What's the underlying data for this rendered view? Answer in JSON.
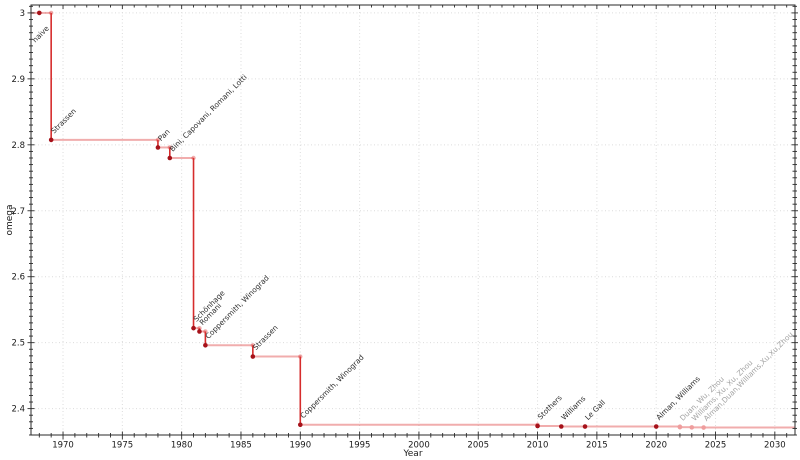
{
  "chart_data": {
    "type": "line",
    "subtype": "step-post",
    "title": "",
    "xlabel": "Year",
    "ylabel": "omega",
    "xlim": [
      1967.3,
      2031.7
    ],
    "ylim": [
      2.36,
      3.012
    ],
    "grid": "dotted-major",
    "legend": "none",
    "x_major_ticks": [
      1970,
      1975,
      1980,
      1985,
      1990,
      1995,
      2000,
      2005,
      2010,
      2015,
      2020,
      2025,
      2030
    ],
    "y_major_ticks": [
      2.4,
      2.5,
      2.6,
      2.7,
      2.8,
      2.9,
      3
    ],
    "y_major_tick_labels": [
      "2.4",
      "2.5",
      "2.6",
      "2.7",
      "2.8",
      "2.9",
      "3"
    ],
    "x_minor_step": 1,
    "y_minor_step": 0.01,
    "colors": {
      "step_line": "#dd3c3c",
      "step_line_opacity": 0.42,
      "drop_line": "#d62c2c",
      "marker": "#a6121a",
      "marker_provisional": "#ef9d9d",
      "grid": "#dcdcdc",
      "axis": "#2a2a2a",
      "tick_label": "#1a1a1a",
      "point_label": "#2e2e2e",
      "point_label_provisional": "#a3a3a3"
    },
    "points": [
      {
        "year": 1968,
        "omega": 3,
        "label": "naive",
        "label_dx": -4,
        "label_dy": 30
      },
      {
        "year": 1969,
        "omega": 2.8074,
        "label": "Strassen"
      },
      {
        "year": 1978,
        "omega": 2.796,
        "label": "Pan"
      },
      {
        "year": 1979,
        "omega": 2.78,
        "label": "Bini, Capovani, Romani, Lotti"
      },
      {
        "year": 1981,
        "omega": 2.522,
        "label": "Schönhage"
      },
      {
        "year": 1981.5,
        "omega": 2.517,
        "label": "Romani"
      },
      {
        "year": 1982,
        "omega": 2.496,
        "label": "Coppersmith, Winograd"
      },
      {
        "year": 1986,
        "omega": 2.479,
        "label": "Strassen"
      },
      {
        "year": 1990,
        "omega": 2.3755,
        "label": "Coppersmith, Winograd"
      },
      {
        "year": 2010,
        "omega": 2.3737,
        "label": "Stothers"
      },
      {
        "year": 2012,
        "omega": 2.3729,
        "label": "Williams"
      },
      {
        "year": 2014,
        "omega": 2.3728639,
        "label": "Le Gall"
      },
      {
        "year": 2020,
        "omega": 2.3728596,
        "label": "Alman, Williams"
      },
      {
        "year": 2022,
        "omega": 2.371866,
        "label": "Duan, Wu, Zhou",
        "provisional": true
      },
      {
        "year": 2023,
        "omega": 2.371552,
        "label": "Williams, Xu, Xu, Zhou",
        "provisional": true
      },
      {
        "year": 2024,
        "omega": 2.371339,
        "label": "Alman,Duan,Williams,Xu,Xu,Zhou",
        "provisional": true
      }
    ]
  }
}
